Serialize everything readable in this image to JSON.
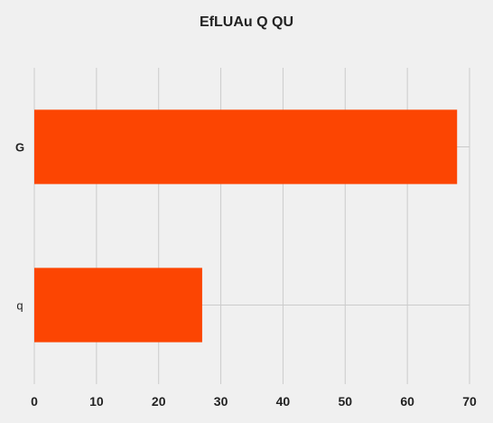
{
  "chart_data": {
    "type": "bar",
    "orientation": "horizontal",
    "title": "EfLUAu Q QU",
    "categories": [
      "G",
      "q"
    ],
    "values": [
      68,
      27
    ],
    "xlim": [
      0,
      70
    ],
    "xticks": [
      0,
      10,
      20,
      30,
      40,
      50,
      60,
      70
    ],
    "bar_color": "#fc4502",
    "background_color": "#f0f0f0",
    "grid": true,
    "grid_color": "#cbcbcb",
    "xlabel": "",
    "ylabel": ""
  }
}
